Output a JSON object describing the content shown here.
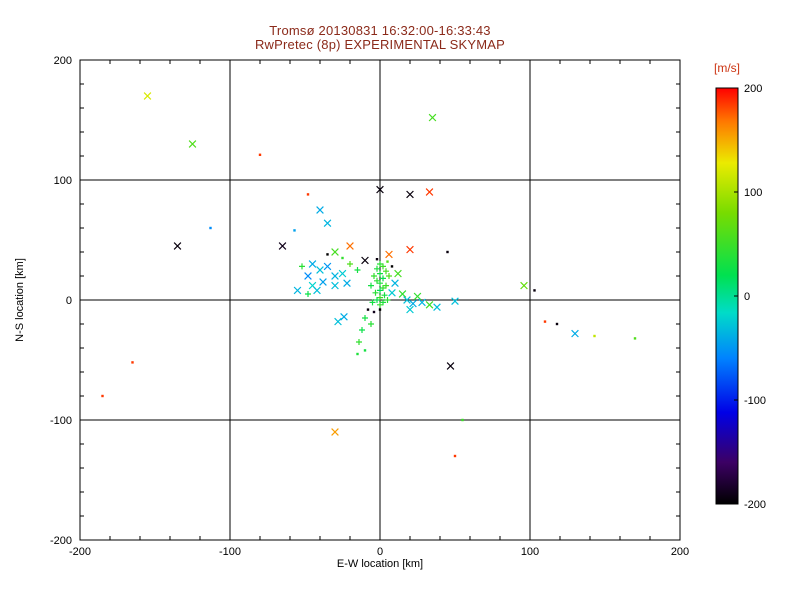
{
  "title": {
    "line1": "Tromsø 20130831 16:32:00-16:33:43",
    "line2": "RwPretec (8p) EXPERIMENTAL SKYMAP"
  },
  "colors": {
    "title": "#8b2a1a",
    "colorbar_label": "#cc3311",
    "axis": "#000000",
    "background": "#ffffff"
  },
  "chart_data": {
    "type": "scatter",
    "title": "Tromsø 20130831 16:32:00-16:33:43",
    "subtitle": "RwPretec (8p) EXPERIMENTAL SKYMAP",
    "xlabel": "E-W location [km]",
    "ylabel": "N-S location [km]",
    "xlim": [
      -200,
      200
    ],
    "ylim": [
      -200,
      200
    ],
    "x_ticks": [
      -200,
      -100,
      0,
      100,
      200
    ],
    "y_ticks": [
      -200,
      -100,
      0,
      100,
      200
    ],
    "grid_lines": [
      -100,
      0,
      100
    ],
    "grid": true,
    "legend": "none",
    "colorbar": {
      "label": "[m/s]",
      "ticks": [
        200,
        100,
        0,
        -100,
        -200
      ],
      "range": [
        -200,
        200
      ],
      "stops": [
        [
          0.0,
          "#000000"
        ],
        [
          0.1,
          "#3c0064"
        ],
        [
          0.22,
          "#0000e6"
        ],
        [
          0.35,
          "#0082ff"
        ],
        [
          0.46,
          "#00dcc8"
        ],
        [
          0.55,
          "#00e150"
        ],
        [
          0.7,
          "#78dc00"
        ],
        [
          0.82,
          "#ebeb00"
        ],
        [
          0.92,
          "#ff7800"
        ],
        [
          1.0,
          "#ff0000"
        ]
      ]
    },
    "points_format": [
      "x_km",
      "y_km",
      "velocity_m_per_s",
      "marker(x=cross,+=plus,d=dot)"
    ],
    "points": [
      [
        -155,
        170,
        120,
        "x"
      ],
      [
        -125,
        130,
        60,
        "x"
      ],
      [
        -80,
        121,
        185,
        "d"
      ],
      [
        35,
        152,
        55,
        "x"
      ],
      [
        -48,
        88,
        185,
        "d"
      ],
      [
        0,
        92,
        -195,
        "x"
      ],
      [
        20,
        88,
        -195,
        "x"
      ],
      [
        33,
        90,
        185,
        "x"
      ],
      [
        -40,
        75,
        -40,
        "x"
      ],
      [
        -35,
        64,
        -35,
        "x"
      ],
      [
        -57,
        58,
        -45,
        "d"
      ],
      [
        -113,
        60,
        -55,
        "d"
      ],
      [
        -135,
        45,
        -195,
        "x"
      ],
      [
        -65,
        45,
        -190,
        "x"
      ],
      [
        -20,
        45,
        170,
        "x"
      ],
      [
        20,
        42,
        185,
        "x"
      ],
      [
        45,
        40,
        -195,
        "d"
      ],
      [
        -30,
        40,
        55,
        "x"
      ],
      [
        96,
        12,
        70,
        "x"
      ],
      [
        103,
        8,
        -195,
        "d"
      ],
      [
        110,
        -18,
        185,
        "d"
      ],
      [
        118,
        -20,
        -195,
        "d"
      ],
      [
        130,
        -28,
        -40,
        "x"
      ],
      [
        143,
        -30,
        110,
        "d"
      ],
      [
        170,
        -32,
        60,
        "d"
      ],
      [
        47,
        -55,
        -195,
        "x"
      ],
      [
        -165,
        -52,
        185,
        "d"
      ],
      [
        -185,
        -80,
        185,
        "d"
      ],
      [
        -30,
        -110,
        155,
        "x"
      ],
      [
        50,
        -130,
        185,
        "d"
      ],
      [
        55,
        -100,
        50,
        "d"
      ],
      [
        -52,
        28,
        40,
        "+"
      ],
      [
        -48,
        20,
        -55,
        "x"
      ],
      [
        -45,
        30,
        -40,
        "x"
      ],
      [
        -45,
        12,
        -20,
        "x"
      ],
      [
        -42,
        8,
        -30,
        "x"
      ],
      [
        -40,
        25,
        -30,
        "x"
      ],
      [
        -38,
        15,
        -45,
        "x"
      ],
      [
        -35,
        28,
        -50,
        "x"
      ],
      [
        -35,
        38,
        -200,
        "d"
      ],
      [
        -30,
        20,
        -35,
        "x"
      ],
      [
        -30,
        12,
        -30,
        "x"
      ],
      [
        -28,
        -18,
        -30,
        "x"
      ],
      [
        -25,
        22,
        -25,
        "x"
      ],
      [
        -25,
        35,
        45,
        "d"
      ],
      [
        -24,
        -14,
        -40,
        "x"
      ],
      [
        -22,
        14,
        -40,
        "x"
      ],
      [
        -20,
        30,
        60,
        "+"
      ],
      [
        -15,
        25,
        30,
        "+"
      ],
      [
        -55,
        8,
        -35,
        "x"
      ],
      [
        -48,
        5,
        25,
        "+"
      ],
      [
        -10,
        33,
        -195,
        "x"
      ],
      [
        0,
        30,
        40,
        "+"
      ],
      [
        2,
        28,
        50,
        "+"
      ],
      [
        -2,
        26,
        35,
        "+"
      ],
      [
        4,
        24,
        55,
        "+"
      ],
      [
        0,
        22,
        30,
        "+"
      ],
      [
        -4,
        20,
        45,
        "+"
      ],
      [
        2,
        18,
        25,
        "+"
      ],
      [
        6,
        20,
        60,
        "+"
      ],
      [
        -2,
        16,
        40,
        "+"
      ],
      [
        0,
        14,
        35,
        "+"
      ],
      [
        4,
        12,
        50,
        "+"
      ],
      [
        -6,
        12,
        30,
        "+"
      ],
      [
        2,
        10,
        45,
        "+"
      ],
      [
        0,
        8,
        20,
        "+"
      ],
      [
        -3,
        6,
        40,
        "+"
      ],
      [
        3,
        4,
        30,
        "+"
      ],
      [
        0,
        2,
        50,
        "+"
      ],
      [
        -2,
        0,
        25,
        "+"
      ],
      [
        2,
        -2,
        35,
        "+"
      ],
      [
        0,
        -4,
        45,
        "+"
      ],
      [
        -5,
        -2,
        30,
        "+"
      ],
      [
        5,
        0,
        40,
        "+"
      ],
      [
        8,
        6,
        -25,
        "x"
      ],
      [
        10,
        14,
        -35,
        "x"
      ],
      [
        12,
        22,
        55,
        "x"
      ],
      [
        8,
        28,
        -200,
        "d"
      ],
      [
        -2,
        34,
        -195,
        "d"
      ],
      [
        5,
        32,
        60,
        "d"
      ],
      [
        6,
        38,
        170,
        "x"
      ],
      [
        15,
        5,
        45,
        "x"
      ],
      [
        18,
        0,
        -30,
        "x"
      ],
      [
        22,
        -3,
        -40,
        "x"
      ],
      [
        25,
        3,
        45,
        "x"
      ],
      [
        28,
        -2,
        -35,
        "x"
      ],
      [
        33,
        -4,
        50,
        "x"
      ],
      [
        38,
        -6,
        -30,
        "x"
      ],
      [
        20,
        -8,
        -25,
        "x"
      ],
      [
        50,
        -1,
        -30,
        "x"
      ],
      [
        -8,
        -8,
        -195,
        "d"
      ],
      [
        -4,
        -10,
        -190,
        "d"
      ],
      [
        0,
        -8,
        -200,
        "d"
      ],
      [
        -10,
        -15,
        30,
        "+"
      ],
      [
        -6,
        -20,
        40,
        "+"
      ],
      [
        -12,
        -25,
        25,
        "+"
      ],
      [
        -14,
        -35,
        45,
        "+"
      ],
      [
        -10,
        -42,
        30,
        "d"
      ],
      [
        -15,
        -45,
        35,
        "d"
      ]
    ]
  }
}
